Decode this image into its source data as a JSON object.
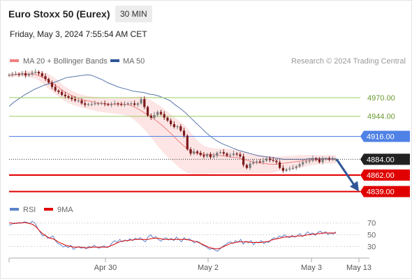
{
  "header": {
    "title": "Euro Stoxx 50 (Eurex)",
    "timeframe": "30 MIN",
    "datetime": "Friday, May 3, 2024 7:55:54 AM CET"
  },
  "legend": {
    "bollinger_label": "MA 20 + Bollinger Bands",
    "ma50_label": "MA 50",
    "credit": "Research © 2024 Trading Central",
    "rsi_label": "RSI",
    "rsi_ma_label": "9MA"
  },
  "colors": {
    "bollinger": "#f08080",
    "bollinger_fill": "#fde0e0",
    "ma50": "#2f5597",
    "up_candle": "#7a7a7a",
    "down_candle": "#7b1a1a",
    "green_level": "#9acd62",
    "blue_level": "#4f81e6",
    "red_level": "#e00000",
    "current": "#222222",
    "arrow": "#2f5597",
    "rsi": "#5b84c9",
    "rsi_ma": "#e00000"
  },
  "chart_data": {
    "type": "candlestick",
    "x_ticks": [
      "Apr 30",
      "May 2",
      "May 3",
      "May 13"
    ],
    "ylim": [
      4823,
      5008
    ],
    "levels": [
      {
        "value": 4970.0,
        "label": "4970.00",
        "kind": "resistance",
        "color": "green"
      },
      {
        "value": 4944.0,
        "label": "4944.00",
        "kind": "resistance",
        "color": "green"
      },
      {
        "value": 4916.0,
        "label": "4916.00",
        "kind": "pivot",
        "color": "blue"
      },
      {
        "value": 4884.0,
        "label": "4884.00",
        "kind": "last_price",
        "color": "black"
      },
      {
        "value": 4862.0,
        "label": "4862.00",
        "kind": "support",
        "color": "red"
      },
      {
        "value": 4839.0,
        "label": "4839.00",
        "kind": "support",
        "color": "red"
      }
    ],
    "projection": {
      "from": 4884,
      "to": 4842
    },
    "close": [
      5002,
      5003,
      5003,
      5002,
      5004,
      5001,
      5003,
      5005,
      5006,
      5004,
      5000,
      4996,
      4991,
      4985,
      4980,
      4978,
      4974,
      4972,
      4970,
      4968,
      4966,
      4966,
      4962,
      4960,
      4961,
      4961,
      4962,
      4962,
      4962,
      4961,
      4960,
      4961,
      4962,
      4961,
      4960,
      4961,
      4962,
      4962,
      4960,
      4962,
      4968,
      4957,
      4945,
      4942,
      4946,
      4950,
      4947,
      4942,
      4938,
      4933,
      4929,
      4930,
      4924,
      4917,
      4898,
      4892,
      4895,
      4893,
      4890,
      4888,
      4891,
      4887,
      4889,
      4893,
      4894,
      4892,
      4889,
      4890,
      4892,
      4891,
      4888,
      4876,
      4872,
      4878,
      4880,
      4881,
      4880,
      4882,
      4885,
      4883,
      4882,
      4880,
      4872,
      4868,
      4870,
      4871,
      4872,
      4874,
      4877,
      4880,
      4881,
      4882,
      4885,
      4884,
      4880,
      4884,
      4885,
      4884,
      4884,
      4884
    ],
    "ma50": [
      4958,
      4964,
      4969,
      4974,
      4978,
      4982,
      4985,
      4988,
      4990,
      4992,
      4995,
      4998,
      4999,
      5000,
      5001,
      5002,
      5001,
      4998,
      4995,
      4991,
      4988,
      4985,
      4983,
      4981,
      4979,
      4978,
      4977,
      4975,
      4974,
      4972,
      4969,
      4966,
      4960,
      4955,
      4949,
      4942,
      4935,
      4928,
      4921,
      4915,
      4910,
      4906,
      4903,
      4900,
      4897,
      4895,
      4893,
      4891,
      4889,
      4888,
      4887,
      4886,
      4885,
      4884,
      4884,
      4884,
      4884,
      4884,
      4885,
      4885,
      4885,
      4885,
      4885,
      4885
    ],
    "ma20_bands": {
      "mid": [
        5001,
        5002,
        5003,
        5003,
        5003,
        5002,
        4999,
        4995,
        4990,
        4985,
        4979,
        4975,
        4971,
        4968,
        4966,
        4965,
        4963,
        4962,
        4961,
        4961,
        4961,
        4961,
        4960,
        4957,
        4953,
        4948,
        4944,
        4938,
        4932,
        4925,
        4918,
        4910,
        4903,
        4897,
        4893,
        4892,
        4891,
        4891,
        4890,
        4889,
        4888,
        4887,
        4886,
        4884,
        4882,
        4880,
        4879,
        4878,
        4877,
        4877,
        4878,
        4879,
        4880,
        4881,
        4882,
        4883,
        4883,
        4884,
        4884,
        4884,
        4884
      ],
      "upper": [
        5004,
        5005,
        5006,
        5007,
        5008,
        5007,
        5006,
        5004,
        5000,
        4994,
        4987,
        4982,
        4978,
        4975,
        4973,
        4972,
        4971,
        4970,
        4969,
        4969,
        4969,
        4970,
        4970,
        4971,
        4972,
        4970,
        4967,
        4962,
        4957,
        4951,
        4945,
        4939,
        4933,
        4925,
        4915,
        4907,
        4902,
        4900,
        4899,
        4899,
        4899,
        4898,
        4897,
        4895,
        4893,
        4891,
        4890,
        4889,
        4888,
        4888,
        4888,
        4889,
        4889,
        4890,
        4890,
        4890,
        4890,
        4890,
        4890,
        4890,
        4890
      ],
      "lower": [
        4998,
        4999,
        5000,
        4999,
        4998,
        4996,
        4991,
        4984,
        4978,
        4972,
        4966,
        4962,
        4959,
        4957,
        4955,
        4953,
        4951,
        4950,
        4949,
        4948,
        4947,
        4946,
        4944,
        4939,
        4932,
        4924,
        4915,
        4905,
        4896,
        4888,
        4881,
        4874,
        4868,
        4864,
        4862,
        4862,
        4863,
        4864,
        4864,
        4864,
        4865,
        4865,
        4865,
        4865,
        4864,
        4864,
        4864,
        4864,
        4865,
        4866,
        4868,
        4869,
        4870,
        4871,
        4873,
        4875,
        4876,
        4877,
        4878,
        4878,
        4878
      ]
    },
    "rsi": {
      "ticks": [
        70,
        50,
        30
      ],
      "ylim": [
        15,
        78
      ],
      "rsi": [
        66,
        68,
        70,
        69,
        71,
        70,
        72,
        71,
        69,
        73,
        70,
        62,
        55,
        48,
        50,
        44,
        45,
        48,
        40,
        35,
        33,
        29,
        31,
        28,
        32,
        25,
        28,
        30,
        27,
        29,
        26,
        30,
        28,
        32,
        29,
        27,
        30,
        31,
        28,
        30,
        36,
        40,
        37,
        42,
        38,
        41,
        39,
        43,
        40,
        44,
        42,
        45,
        41,
        38,
        46,
        50,
        44,
        47,
        42,
        39,
        43,
        45,
        41,
        44,
        40,
        46,
        42,
        38,
        45,
        41,
        43,
        40,
        36,
        39,
        37,
        33,
        31,
        28,
        25,
        27,
        24,
        22,
        26,
        30,
        33,
        36,
        38,
        35,
        40,
        37,
        42,
        34,
        39,
        36,
        40,
        33,
        38,
        36,
        40,
        35,
        38,
        37,
        42,
        45,
        43,
        48,
        46,
        50,
        47,
        45,
        49,
        46,
        48,
        52,
        47,
        50,
        55,
        51,
        53,
        49,
        54,
        56,
        52,
        55,
        50,
        53,
        51,
        55
      ],
      "ma": [
        70,
        70,
        69,
        70,
        70,
        70,
        71,
        70,
        69,
        68,
        65,
        61,
        56,
        52,
        49,
        46,
        44,
        43,
        41,
        38,
        36,
        34,
        32,
        31,
        30,
        29,
        29,
        29,
        29,
        28,
        28,
        28,
        29,
        29,
        29,
        29,
        29,
        29,
        29,
        30,
        32,
        34,
        36,
        38,
        39,
        40,
        40,
        41,
        41,
        42,
        42,
        42,
        42,
        42,
        42,
        43,
        44,
        44,
        44,
        43,
        42,
        42,
        42,
        42,
        42,
        42,
        42,
        42,
        42,
        42,
        41,
        40,
        39,
        38,
        36,
        34,
        32,
        30,
        28,
        27,
        26,
        26,
        27,
        29,
        31,
        33,
        35,
        36,
        37,
        38,
        38,
        38,
        38,
        38,
        37,
        37,
        37,
        37,
        37,
        38,
        38,
        39,
        41,
        42,
        43,
        44,
        45,
        46,
        46,
        47,
        47,
        47,
        48,
        48,
        48,
        49,
        50,
        50,
        51,
        51,
        52,
        52,
        53,
        53,
        53,
        53,
        53,
        53
      ]
    }
  }
}
